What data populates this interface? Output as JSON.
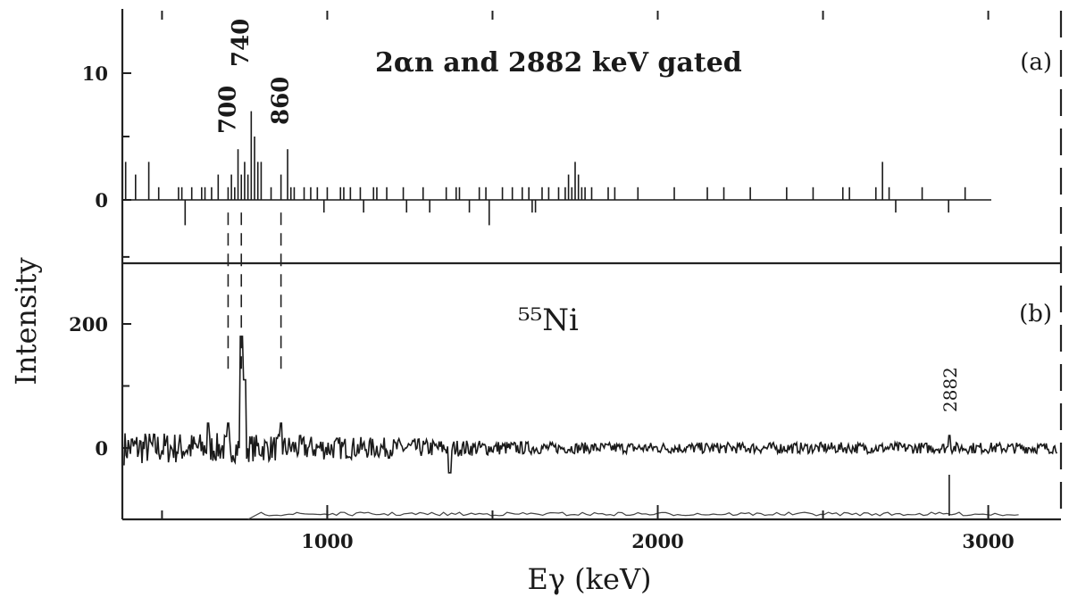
{
  "chart_data": [
    {
      "type": "bar",
      "panel": "(a)",
      "title": "2αn and 2882 keV gated",
      "xlabel": "Eγ (keV)",
      "ylabel": "Intensity",
      "xlim": [
        380,
        3220
      ],
      "ylim": [
        -4,
        14
      ],
      "yticks": [
        0,
        10
      ],
      "peak_labels": [
        {
          "energy": 700,
          "label": "700"
        },
        {
          "energy": 740,
          "label": "740"
        },
        {
          "energy": 860,
          "label": "860"
        }
      ],
      "x": [
        390,
        420,
        460,
        490,
        550,
        560,
        570,
        590,
        620,
        630,
        650,
        670,
        700,
        710,
        720,
        730,
        740,
        750,
        760,
        770,
        780,
        790,
        800,
        830,
        860,
        880,
        890,
        900,
        930,
        950,
        970,
        990,
        1000,
        1040,
        1050,
        1070,
        1100,
        1110,
        1140,
        1150,
        1180,
        1230,
        1240,
        1290,
        1310,
        1360,
        1390,
        1400,
        1430,
        1460,
        1480,
        1490,
        1530,
        1560,
        1590,
        1610,
        1620,
        1630,
        1650,
        1670,
        1700,
        1720,
        1730,
        1740,
        1750,
        1760,
        1770,
        1780,
        1800,
        1850,
        1870,
        1940,
        2050,
        2150,
        2200,
        2280,
        2390,
        2470,
        2560,
        2580,
        2660,
        2680,
        2700,
        2720,
        2800,
        2880,
        2930
      ],
      "values": [
        3,
        2,
        3,
        1,
        1,
        1,
        -2,
        1,
        1,
        1,
        1,
        2,
        1,
        2,
        1,
        4,
        2,
        3,
        2,
        7,
        5,
        3,
        3,
        1,
        2,
        4,
        1,
        1,
        1,
        1,
        1,
        -1,
        1,
        1,
        1,
        1,
        1,
        -1,
        1,
        1,
        1,
        1,
        -1,
        1,
        -1,
        1,
        1,
        1,
        -1,
        1,
        1,
        -2,
        1,
        1,
        1,
        1,
        -1,
        -1,
        1,
        1,
        1,
        1,
        2,
        1,
        3,
        2,
        1,
        1,
        1,
        1,
        1,
        1,
        1,
        1,
        1,
        1,
        1,
        1,
        1,
        1,
        1,
        3,
        1,
        -1,
        1,
        -1,
        1
      ]
    },
    {
      "type": "line",
      "panel": "(b)",
      "title": "⁵⁵Ni",
      "xlabel": "Eγ (keV)",
      "ylabel": "Intensity",
      "xlim": [
        380,
        3220
      ],
      "ylim": [
        -120,
        320
      ],
      "yticks": [
        0,
        200
      ],
      "xticks": [
        1000,
        2000,
        3000
      ],
      "peak_labels": [
        {
          "energy": 2882,
          "label": "2882"
        }
      ],
      "seed": 7,
      "noise_amplitude_left": 28,
      "noise_amplitude_right": 9,
      "peaks": [
        {
          "energy": 640,
          "value": 40
        },
        {
          "energy": 700,
          "value": 40
        },
        {
          "energy": 740,
          "value": 180
        },
        {
          "energy": 750,
          "value": 110
        },
        {
          "energy": 860,
          "value": 40
        },
        {
          "energy": 1370,
          "value": -40
        },
        {
          "energy": 2882,
          "value": 20
        }
      ]
    }
  ]
}
